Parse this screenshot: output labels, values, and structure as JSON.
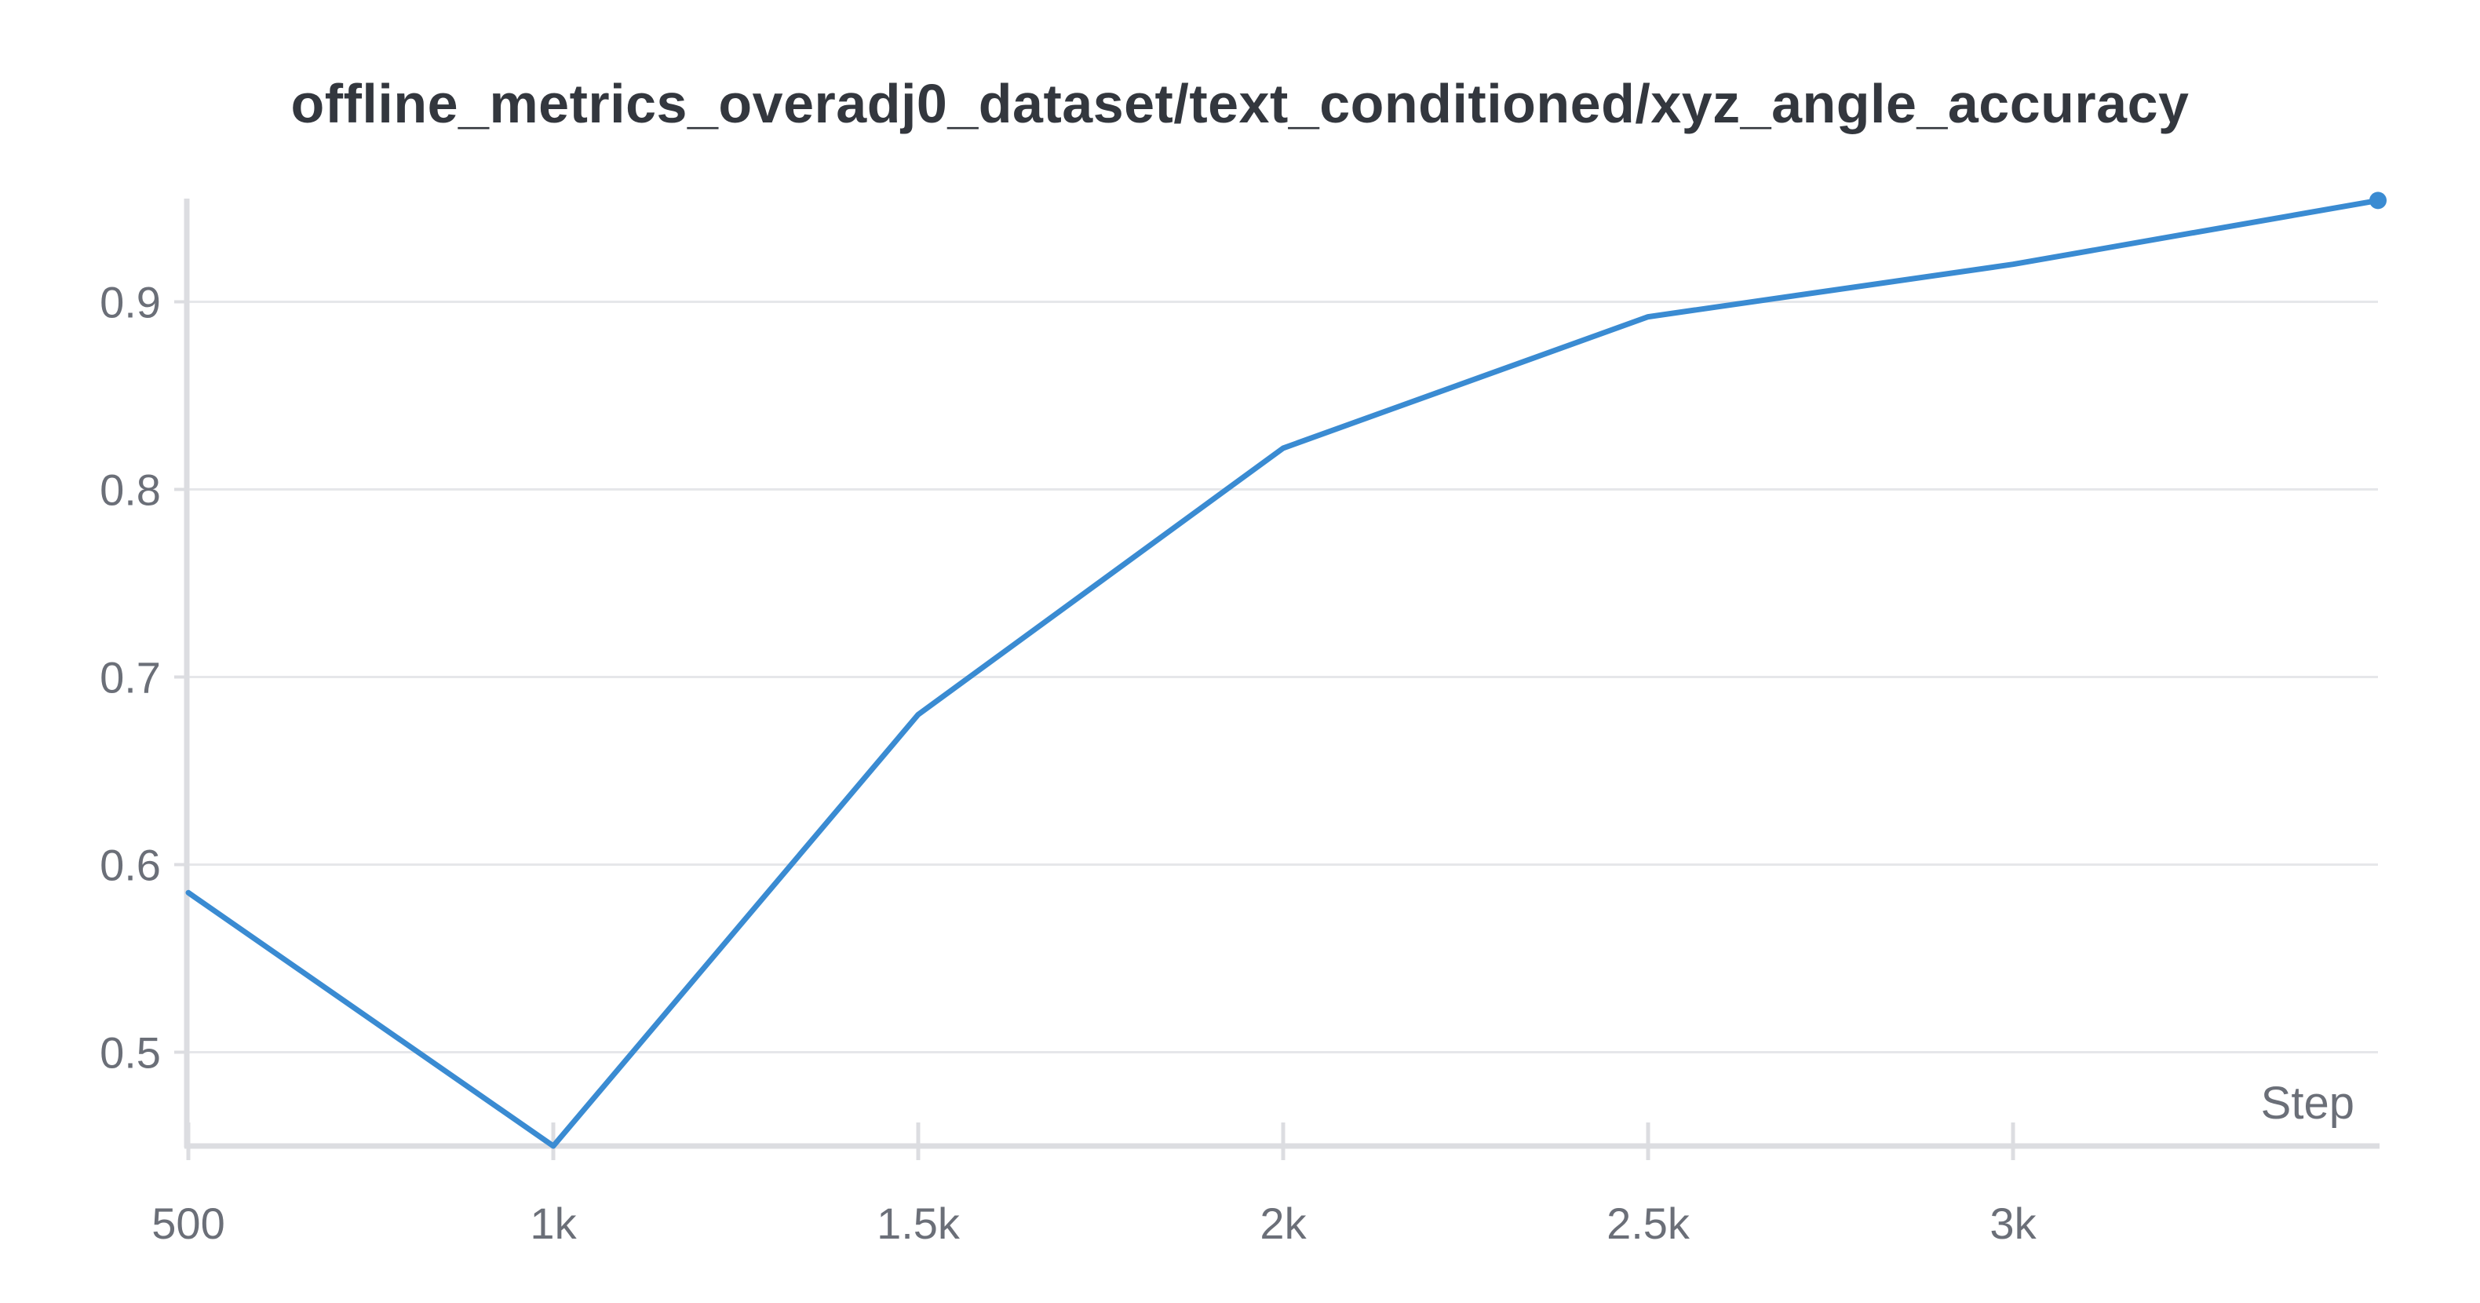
{
  "chart_data": {
    "type": "line",
    "title": "offline_metrics_overadj0_dataset/text_conditioned/xyz_angle_accuracy",
    "xlabel": "Step",
    "ylabel": "",
    "xlim": [
      500,
      3500
    ],
    "ylim": [
      0.45,
      0.955
    ],
    "x_ticks": [
      500,
      1000,
      1500,
      2000,
      2500,
      3000
    ],
    "x_tick_labels": [
      "500",
      "1k",
      "1.5k",
      "2k",
      "2.5k",
      "3k"
    ],
    "y_ticks": [
      0.5,
      0.6,
      0.7,
      0.8,
      0.9
    ],
    "y_tick_labels": [
      "0.5",
      "0.6",
      "0.7",
      "0.8",
      "0.9"
    ],
    "grid": true,
    "legend": "none",
    "series": [
      {
        "color": "#3a8bd2",
        "x": [
          500,
          1000,
          1500,
          2000,
          2500,
          3000,
          3500
        ],
        "y": [
          0.585,
          0.45,
          0.68,
          0.822,
          0.892,
          0.92,
          0.954
        ]
      }
    ]
  }
}
